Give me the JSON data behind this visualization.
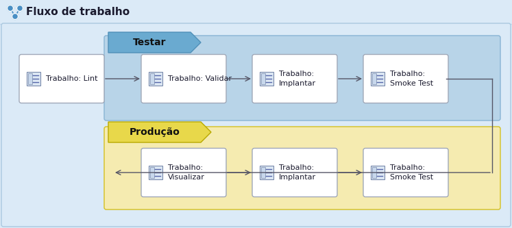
{
  "title": "Fluxo de trabalho",
  "title_fontsize": 11,
  "bg_outer": "#dbeaf7",
  "bg_testar": "#b8d4e8",
  "bg_producao": "#f5ebb0",
  "box_fill": "#ffffff",
  "box_edge": "#a0a8b8",
  "arrow_color": "#555566",
  "testar_label": "Testar",
  "producao_label": "Produção",
  "jobs_row1": [
    "Trabalho: Lint",
    "Trabalho: Validar",
    "Trabalho:\nImplantar",
    "Trabalho:\nSmoke Test"
  ],
  "jobs_row2": [
    "Trabalho:\nVisualizar",
    "Trabalho:\nImplantar",
    "Trabalho:\nSmoke Test"
  ],
  "font_color": "#1a1a2e",
  "label_fontsize": 8,
  "section_fontsize": 10,
  "icon_color": "#5577aa"
}
